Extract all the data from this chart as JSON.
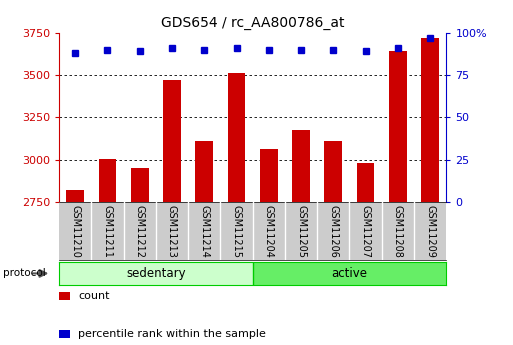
{
  "title": "GDS654 / rc_AA800786_at",
  "samples": [
    "GSM11210",
    "GSM11211",
    "GSM11212",
    "GSM11213",
    "GSM11214",
    "GSM11215",
    "GSM11204",
    "GSM11205",
    "GSM11206",
    "GSM11207",
    "GSM11208",
    "GSM11209"
  ],
  "counts": [
    2820,
    3005,
    2950,
    3470,
    3110,
    3510,
    3065,
    3175,
    3110,
    2980,
    3640,
    3720
  ],
  "percentile_ranks": [
    88,
    90,
    89,
    91,
    90,
    91,
    90,
    90,
    90,
    89,
    91,
    97
  ],
  "ylim_left": [
    2750,
    3750
  ],
  "ylim_right": [
    0,
    100
  ],
  "yticks_left": [
    2750,
    3000,
    3250,
    3500,
    3750
  ],
  "yticks_right": [
    0,
    25,
    50,
    75,
    100
  ],
  "bar_color": "#cc0000",
  "dot_color": "#0000cc",
  "groups": [
    {
      "label": "sedentary",
      "start": 0,
      "end": 6,
      "color": "#ccffcc"
    },
    {
      "label": "active",
      "start": 6,
      "end": 12,
      "color": "#66ee66"
    }
  ],
  "protocol_label": "protocol",
  "legend_items": [
    {
      "color": "#cc0000",
      "label": "count"
    },
    {
      "color": "#0000cc",
      "label": "percentile rank within the sample"
    }
  ],
  "background_color": "#ffffff",
  "grid_color": "#000000",
  "title_fontsize": 10,
  "tick_fontsize": 8,
  "label_fontsize": 7,
  "bar_width": 0.55,
  "separator_color": "#aaaaaa",
  "sample_bg": "#cccccc"
}
